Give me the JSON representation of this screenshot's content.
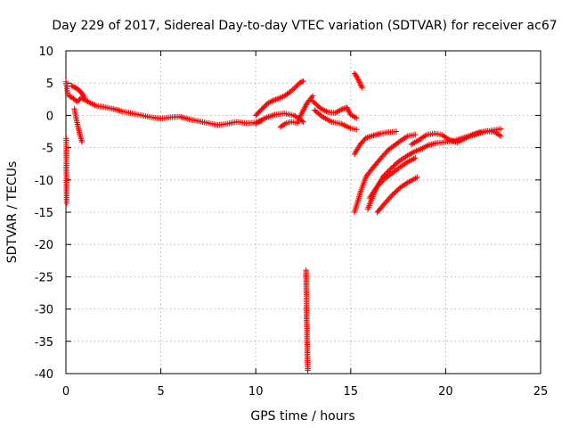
{
  "chart_data": {
    "type": "scatter",
    "title": "Day 229 of 2017, Sidereal Day-to-day VTEC variation (SDTVAR) for receiver ac67",
    "xlabel": "GPS time / hours",
    "ylabel": "SDTVAR / TECUs",
    "xlim": [
      0,
      25
    ],
    "ylim": [
      -40,
      10
    ],
    "xticks": [
      "0",
      "5",
      "10",
      "15",
      "20",
      "25"
    ],
    "yticks": [
      "10",
      "5",
      "0",
      "-5",
      "-10",
      "-15",
      "-20",
      "-25",
      "-30",
      "-35",
      "-40"
    ],
    "grid": true,
    "marker": "plus",
    "series": [
      {
        "name": "ac67",
        "color": "#ff0000",
        "segments": [
          {
            "x": [
              0.0,
              0.05,
              0.1
            ],
            "y": [
              5.2,
              4.4,
              3.2
            ]
          },
          {
            "x": [
              0.2,
              0.4,
              0.6,
              0.8,
              1.0,
              1.3,
              1.6,
              2.0,
              2.5,
              3.0,
              3.5,
              4.0,
              4.5,
              5.0,
              5.5,
              6.0,
              6.5,
              7.0,
              7.5,
              8.0,
              8.5,
              9.0,
              9.5,
              10.0,
              10.3
            ],
            "y": [
              3.0,
              2.6,
              2.1,
              2.7,
              2.4,
              1.9,
              1.5,
              1.3,
              1.0,
              0.6,
              0.3,
              0.0,
              -0.3,
              -0.5,
              -0.3,
              -0.2,
              -0.6,
              -0.9,
              -1.2,
              -1.5,
              -1.3,
              -1.0,
              -1.2,
              -1.1,
              -0.8
            ]
          },
          {
            "x": [
              0.45,
              0.55,
              0.65,
              0.75,
              0.85
            ],
            "y": [
              1.0,
              -0.6,
              -1.9,
              -3.1,
              -4.1
            ]
          },
          {
            "x": [
              0.3,
              0.5,
              0.7,
              0.9,
              1.0
            ],
            "y": [
              4.6,
              4.3,
              3.9,
              3.2,
              2.7
            ]
          },
          {
            "x": [
              0.02,
              0.03,
              0.04
            ],
            "y": [
              -3.6,
              -10.1,
              -13.6
            ]
          },
          {
            "x": [
              10.0,
              10.3,
              10.6,
              10.9,
              11.2,
              11.5,
              11.8,
              12.1,
              12.3,
              12.5
            ],
            "y": [
              0.0,
              0.9,
              1.8,
              2.3,
              2.6,
              3.0,
              3.6,
              4.4,
              5.0,
              5.3
            ]
          },
          {
            "x": [
              10.0,
              10.5,
              11.0,
              11.5,
              12.0,
              12.3,
              12.5
            ],
            "y": [
              -1.3,
              -0.4,
              0.1,
              0.3,
              0.0,
              -0.5,
              -1.0
            ]
          },
          {
            "x": [
              11.3,
              11.6,
              11.9,
              12.2,
              12.4,
              12.7,
              13.0
            ],
            "y": [
              -1.8,
              -1.2,
              -1.0,
              -1.2,
              0.2,
              1.9,
              3.0
            ]
          },
          {
            "x": [
              13.0,
              13.4,
              13.8,
              14.2,
              14.5,
              14.8,
              15.0,
              15.3
            ],
            "y": [
              2.2,
              1.1,
              0.5,
              0.4,
              0.9,
              1.2,
              0.1,
              -0.4
            ]
          },
          {
            "x": [
              13.1,
              13.5,
              14.0,
              14.5,
              15.0,
              15.3
            ],
            "y": [
              0.8,
              -0.2,
              -1.0,
              -1.3,
              -2.0,
              -2.2
            ]
          },
          {
            "x": [
              12.65,
              12.65,
              12.66,
              12.66,
              12.67,
              12.67,
              12.68,
              12.68,
              12.69,
              12.7,
              12.7,
              12.71,
              12.72,
              12.72,
              12.73,
              12.74
            ],
            "y": [
              -24.0,
              -25.0,
              -26.0,
              -27.0,
              -28.0,
              -29.5,
              -30.5,
              -31.5,
              -32.5,
              -33.5,
              -34.5,
              -35.5,
              -36.5,
              -37.5,
              -38.5,
              -39.5
            ]
          },
          {
            "x": [
              15.2,
              15.3,
              15.4,
              15.5,
              15.6
            ],
            "y": [
              6.5,
              6.1,
              5.5,
              4.9,
              4.3
            ]
          },
          {
            "x": [
              15.2,
              15.5,
              15.8,
              16.2,
              16.6,
              17.0,
              17.4
            ],
            "y": [
              -6.0,
              -4.5,
              -3.5,
              -3.1,
              -2.8,
              -2.6,
              -2.5
            ]
          },
          {
            "x": [
              15.2,
              15.5,
              15.8,
              16.2,
              16.6,
              17.0,
              17.6,
              18.0,
              18.4
            ],
            "y": [
              -15.0,
              -12.0,
              -9.5,
              -8.0,
              -6.6,
              -5.3,
              -4.0,
              -3.2,
              -3.0
            ]
          },
          {
            "x": [
              16.0,
              16.4,
              16.8,
              17.2,
              17.6,
              18.0,
              18.4
            ],
            "y": [
              -12.8,
              -11.0,
              -9.8,
              -8.9,
              -8.0,
              -7.2,
              -6.6
            ]
          },
          {
            "x": [
              15.9,
              16.3,
              16.7,
              17.1,
              17.5,
              17.9,
              18.3,
              18.7,
              19.1,
              19.5,
              20.0,
              20.5,
              21.0,
              21.5,
              22.0,
              22.5,
              22.9
            ],
            "y": [
              -14.5,
              -11.5,
              -9.5,
              -8.3,
              -7.2,
              -6.4,
              -5.7,
              -5.2,
              -4.6,
              -4.3,
              -4.1,
              -3.9,
              -3.4,
              -3.0,
              -2.6,
              -2.3,
              -2.1
            ]
          },
          {
            "x": [
              16.4,
              16.8,
              17.2,
              17.6,
              18.0,
              18.5
            ],
            "y": [
              -15.0,
              -13.6,
              -12.3,
              -11.2,
              -10.4,
              -9.6
            ]
          },
          {
            "x": [
              18.2,
              18.6,
              19.0,
              19.4,
              19.8,
              20.2,
              20.6,
              21.0,
              21.4,
              21.8,
              22.2,
              22.6,
              22.9
            ],
            "y": [
              -4.5,
              -3.8,
              -3.0,
              -2.8,
              -3.0,
              -3.8,
              -4.2,
              -3.6,
              -3.0,
              -2.6,
              -2.4,
              -2.6,
              -3.2
            ]
          }
        ]
      }
    ]
  }
}
